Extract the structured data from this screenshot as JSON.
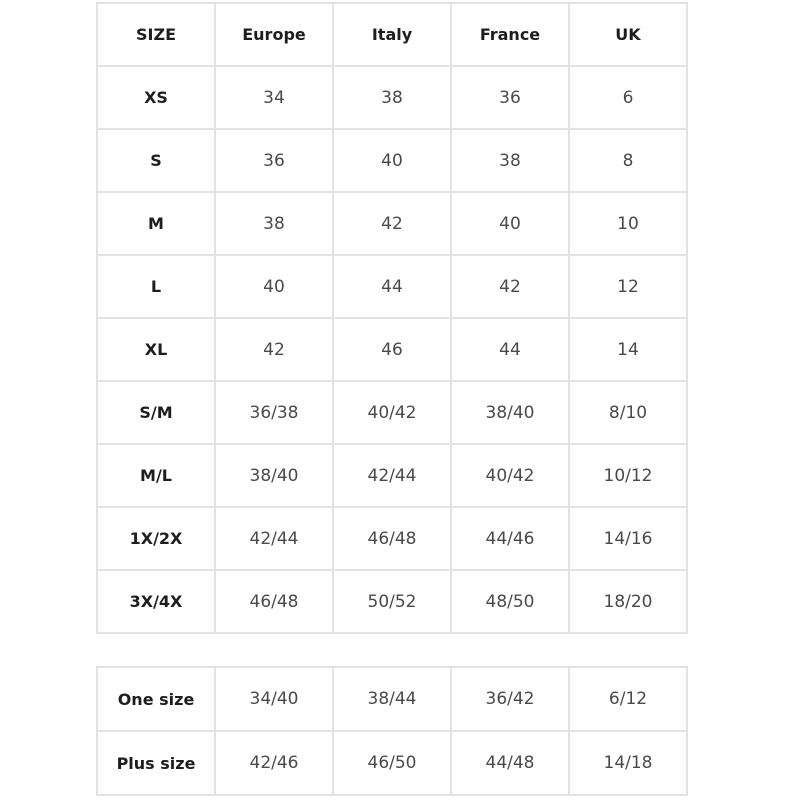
{
  "size_table": {
    "headers": [
      "SIZE",
      "Europe",
      "Italy",
      "France",
      "UK"
    ],
    "rows": [
      [
        "XS",
        "34",
        "38",
        "36",
        "6"
      ],
      [
        "S",
        "36",
        "40",
        "38",
        "8"
      ],
      [
        "M",
        "38",
        "42",
        "40",
        "10"
      ],
      [
        "L",
        "40",
        "44",
        "42",
        "12"
      ],
      [
        "XL",
        "42",
        "46",
        "44",
        "14"
      ],
      [
        "S/M",
        "36/38",
        "40/42",
        "38/40",
        "8/10"
      ],
      [
        "M/L",
        "38/40",
        "42/44",
        "40/42",
        "10/12"
      ],
      [
        "1X/2X",
        "42/44",
        "46/48",
        "44/46",
        "14/16"
      ],
      [
        "3X/4X",
        "46/48",
        "50/52",
        "48/50",
        "18/20"
      ]
    ]
  },
  "special_table": {
    "rows": [
      [
        "One size",
        "34/40",
        "38/44",
        "36/42",
        "6/12"
      ],
      [
        "Plus size",
        "42/46",
        "46/50",
        "44/48",
        "14/18"
      ]
    ]
  }
}
